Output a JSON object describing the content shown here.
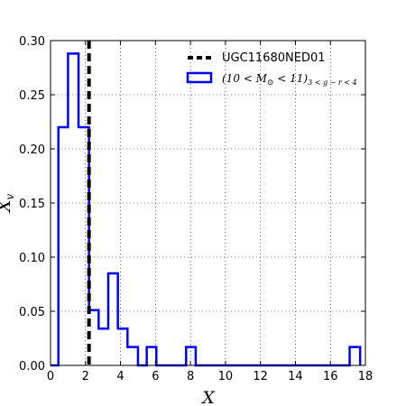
{
  "chart_data": {
    "type": "histogram",
    "xlabel": "X",
    "ylabel": "X_v",
    "xlim": [
      0,
      18
    ],
    "ylim": [
      0,
      0.3
    ],
    "xticks": [
      "0",
      "2",
      "4",
      "6",
      "8",
      "10",
      "12",
      "14",
      "16",
      "18"
    ],
    "yticks": [
      "0.00",
      "0.05",
      "0.10",
      "0.15",
      "0.20",
      "0.25",
      "0.30"
    ],
    "grid": true,
    "legend_position": "top-right",
    "reference_line": {
      "name": "UGC11680NED01",
      "x": 2.2,
      "style": "dashed",
      "color": "#000000"
    },
    "series": [
      {
        "name": "(10 < M_⊙ < 11)_{3 < g−r < 4}",
        "color": "#0000ff",
        "bin_edges": [
          0.0,
          0.45,
          1.0,
          1.6,
          2.2,
          2.75,
          3.3,
          3.85,
          4.4,
          5.0,
          5.5,
          6.05,
          6.6,
          7.2,
          7.75,
          8.3,
          8.85,
          9.4,
          9.95,
          10.5,
          11.0,
          11.6,
          12.15,
          12.7,
          13.25,
          13.8,
          14.35,
          14.9,
          15.45,
          16.0,
          16.55,
          17.1,
          17.7
        ],
        "values": [
          0.0,
          0.22,
          0.288,
          0.22,
          0.051,
          0.034,
          0.085,
          0.034,
          0.017,
          0.0,
          0.017,
          0.0,
          0.0,
          0.0,
          0.017,
          0.0,
          0.0,
          0.0,
          0.0,
          0.0,
          0.0,
          0.0,
          0.0,
          0.0,
          0.0,
          0.0,
          0.0,
          0.0,
          0.0,
          0.0,
          0.0,
          0.017
        ]
      }
    ]
  },
  "colors": {
    "hist": "#0000ff",
    "reference": "#000000",
    "grid": "#000000"
  }
}
